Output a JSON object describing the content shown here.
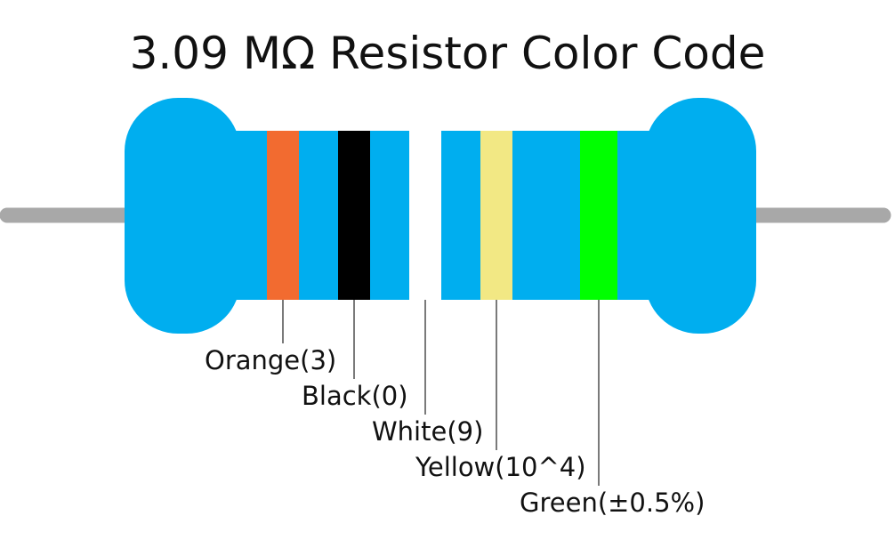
{
  "title": "3.09 MΩ Resistor Color Code",
  "colors": {
    "body": "#00aeef",
    "lead": "#a8a8a8",
    "leader_line": "#222222"
  },
  "bands": [
    {
      "id": "band-1",
      "name": "Orange",
      "label": "Orange(3)",
      "color": "#f26b30"
    },
    {
      "id": "band-2",
      "name": "Black",
      "label": "Black(0)",
      "color": "#000000"
    },
    {
      "id": "band-3",
      "name": "White",
      "label": "White(9)",
      "color": "#ffffff"
    },
    {
      "id": "band-4",
      "name": "Yellow",
      "label": "Yellow(10^4)",
      "color": "#f2e884"
    },
    {
      "id": "band-5",
      "name": "Green",
      "label": "Green(±0.5%)",
      "color": "#00ff00"
    }
  ]
}
